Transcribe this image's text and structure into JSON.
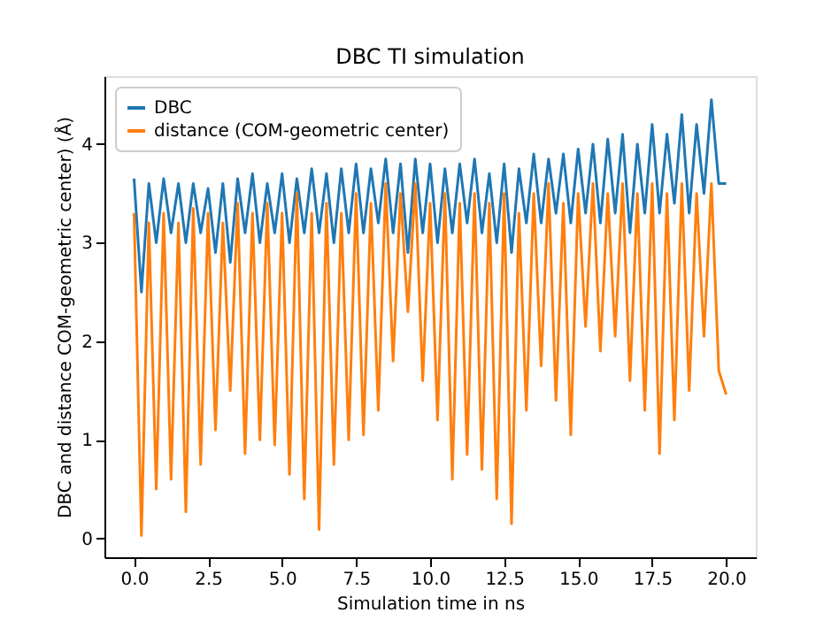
{
  "chart_data": {
    "type": "line",
    "title": "DBC TI simulation",
    "xlabel": "Simulation time in ns",
    "ylabel": "DBC and distance COM-geometric center) (Å)",
    "x": [
      0,
      0.25,
      0.5,
      0.75,
      1,
      1.25,
      1.5,
      1.75,
      2,
      2.25,
      2.5,
      2.75,
      3,
      3.25,
      3.5,
      3.75,
      4,
      4.25,
      4.5,
      4.75,
      5,
      5.25,
      5.5,
      5.75,
      6,
      6.25,
      6.5,
      6.75,
      7,
      7.25,
      7.5,
      7.75,
      8,
      8.25,
      8.5,
      8.75,
      9,
      9.25,
      9.5,
      9.75,
      10,
      10.25,
      10.5,
      10.75,
      11,
      11.25,
      11.5,
      11.75,
      12,
      12.25,
      12.5,
      12.75,
      13,
      13.25,
      13.5,
      13.75,
      14,
      14.25,
      14.5,
      14.75,
      15,
      15.25,
      15.5,
      15.75,
      16,
      16.25,
      16.5,
      16.75,
      17,
      17.25,
      17.5,
      17.75,
      18,
      18.25,
      18.5,
      18.75,
      19,
      19.25,
      19.5,
      19.75,
      20
    ],
    "series": [
      {
        "name": "DBC",
        "color": "#1f77b4",
        "values": [
          3.65,
          2.5,
          3.6,
          3.0,
          3.65,
          3.1,
          3.6,
          3.0,
          3.6,
          3.1,
          3.55,
          2.9,
          3.6,
          2.8,
          3.65,
          3.1,
          3.7,
          3.0,
          3.6,
          3.1,
          3.7,
          3.0,
          3.65,
          3.1,
          3.75,
          3.1,
          3.7,
          3.0,
          3.75,
          3.1,
          3.8,
          3.1,
          3.75,
          3.2,
          3.85,
          3.1,
          3.8,
          2.9,
          3.85,
          3.1,
          3.8,
          3.0,
          3.75,
          3.1,
          3.8,
          3.2,
          3.85,
          3.1,
          3.7,
          3.0,
          3.8,
          2.9,
          3.75,
          3.2,
          3.9,
          3.2,
          3.85,
          3.3,
          3.9,
          3.2,
          3.95,
          3.3,
          4.0,
          3.2,
          4.05,
          3.3,
          4.1,
          3.1,
          4.0,
          3.3,
          4.2,
          3.3,
          4.1,
          3.4,
          4.3,
          3.3,
          4.2,
          3.5,
          4.45,
          3.6,
          3.6
        ]
      },
      {
        "name": "distance (COM-geometric center)",
        "color": "#ff7f0e",
        "values": [
          3.3,
          0.03,
          3.2,
          0.5,
          3.3,
          0.6,
          3.2,
          0.27,
          3.35,
          0.75,
          3.3,
          1.1,
          3.2,
          1.5,
          3.4,
          0.86,
          3.3,
          1.0,
          3.4,
          0.95,
          3.3,
          0.65,
          3.5,
          0.4,
          3.3,
          0.09,
          3.4,
          0.75,
          3.3,
          1.0,
          3.5,
          1.05,
          3.4,
          1.3,
          3.6,
          1.8,
          3.5,
          2.3,
          3.6,
          1.6,
          3.4,
          1.2,
          3.5,
          0.6,
          3.4,
          0.85,
          3.5,
          0.7,
          3.4,
          0.4,
          3.5,
          0.15,
          3.3,
          1.3,
          3.5,
          1.75,
          3.6,
          1.4,
          3.4,
          1.05,
          3.5,
          2.15,
          3.6,
          1.9,
          3.5,
          2.05,
          3.6,
          1.6,
          3.5,
          1.3,
          3.6,
          0.86,
          3.5,
          1.2,
          3.6,
          1.5,
          3.5,
          2.05,
          3.6,
          1.7,
          1.46
        ]
      }
    ],
    "xlim": [
      -1,
      21
    ],
    "ylim": [
      -0.19,
      4.69
    ],
    "xticks": [
      {
        "value": 0,
        "label": "0.0"
      },
      {
        "value": 2.5,
        "label": "2.5"
      },
      {
        "value": 5,
        "label": "5.0"
      },
      {
        "value": 7.5,
        "label": "7.5"
      },
      {
        "value": 10,
        "label": "10.0"
      },
      {
        "value": 12.5,
        "label": "12.5"
      },
      {
        "value": 15,
        "label": "15.0"
      },
      {
        "value": 17.5,
        "label": "17.5"
      },
      {
        "value": 20,
        "label": "20.0"
      }
    ],
    "yticks": [
      0,
      1,
      2,
      3,
      4
    ],
    "legend": "top left",
    "grid": false,
    "line_style": "solid",
    "marker": "none"
  }
}
